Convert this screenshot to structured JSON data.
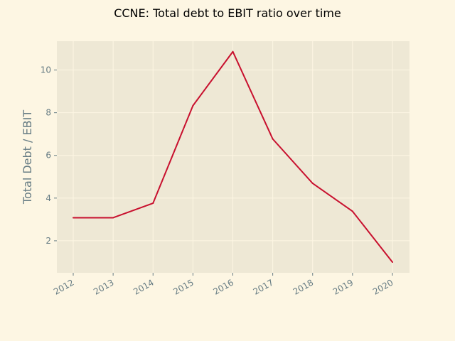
{
  "chart_data": {
    "type": "line",
    "title": "CCNE: Total debt to EBIT ratio over time",
    "xlabel": "",
    "ylabel": "Total Debt / EBIT",
    "x": [
      "2012",
      "2013",
      "2014",
      "2015",
      "2016",
      "2017",
      "2018",
      "2019",
      "2020"
    ],
    "series": [
      {
        "values": [
          3.08,
          3.08,
          3.76,
          8.33,
          10.86,
          6.77,
          4.69,
          3.38,
          1.0
        ]
      }
    ],
    "yticks": [
      2,
      4,
      6,
      8,
      10
    ],
    "ylim": [
      0.5,
      11.35
    ],
    "grid": true,
    "colors": {
      "background": "#fdf6e3",
      "plot_background": "#eee8d5",
      "line": "#c8102e",
      "grid": "#fdf6e3",
      "tick_text": "#657b83"
    }
  }
}
